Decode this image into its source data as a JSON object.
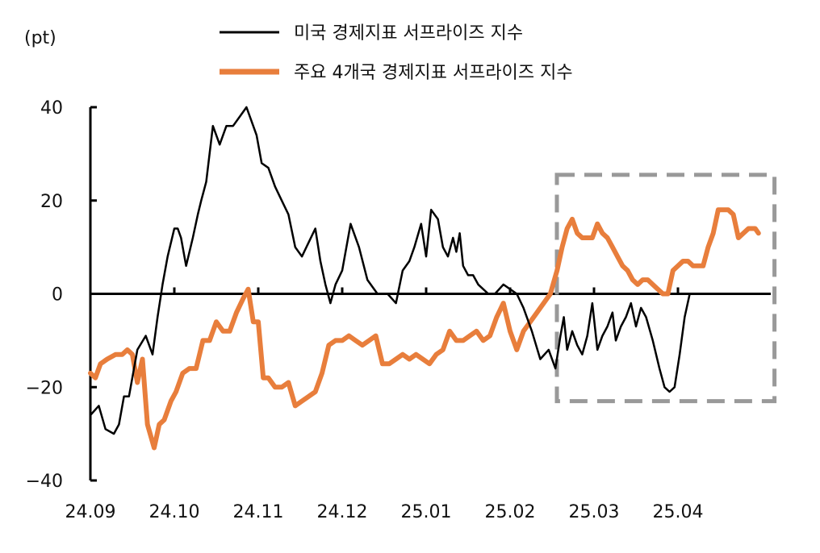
{
  "chart_data": {
    "type": "line",
    "unit_label": "(pt)",
    "ylim": [
      -40,
      40
    ],
    "yticks": [
      40,
      20,
      0,
      -20,
      -40
    ],
    "ytick_labels": [
      "40",
      "20",
      "0",
      "−20",
      "−40"
    ],
    "xlim": [
      0,
      8
    ],
    "xticks": [
      0,
      1,
      2,
      3,
      4,
      5,
      6,
      7
    ],
    "xtick_labels": [
      "24.09",
      "24.10",
      "24.11",
      "24.12",
      "25.01",
      "25.02",
      "25.03",
      "25.04"
    ],
    "legend_position": "top-center",
    "highlight_box": {
      "x_range": [
        5.5,
        8.15
      ],
      "y_range": [
        -23,
        25.5
      ],
      "style": "dashed",
      "color": "#999999"
    },
    "series": [
      {
        "name": "미국 경제지표 서프라이즈 지수",
        "color": "#000000",
        "x": [
          0,
          0.1,
          0.18,
          0.28,
          0.34,
          0.4,
          0.46,
          0.56,
          0.66,
          0.74,
          0.8,
          0.86,
          0.92,
          1.0,
          1.04,
          1.08,
          1.14,
          1.22,
          1.28,
          1.32,
          1.38,
          1.46,
          1.54,
          1.62,
          1.7,
          1.78,
          1.86,
          1.92,
          1.98,
          2.04,
          2.12,
          2.2,
          2.28,
          2.36,
          2.44,
          2.52,
          2.6,
          2.68,
          2.74,
          2.8,
          2.86,
          2.92,
          3.0,
          3.1,
          3.2,
          3.3,
          3.42,
          3.54,
          3.64,
          3.72,
          3.8,
          3.86,
          3.94,
          4.0,
          4.06,
          4.14,
          4.2,
          4.26,
          4.32,
          4.36,
          4.4,
          4.44,
          4.5,
          4.56,
          4.62,
          4.68,
          4.74,
          4.82,
          4.92,
          5.0,
          5.08,
          5.16,
          5.26,
          5.36,
          5.46,
          5.54,
          5.6,
          5.64,
          5.68,
          5.74,
          5.8,
          5.86,
          5.92,
          5.98,
          6.04,
          6.1,
          6.16,
          6.22,
          6.26,
          6.32,
          6.38,
          6.44,
          6.5,
          6.56,
          6.62,
          6.7,
          6.78,
          6.84,
          6.9,
          6.96,
          7.02,
          7.08,
          7.14,
          7.2,
          7.26,
          7.34,
          7.42,
          7.5,
          7.56,
          7.64,
          7.72,
          7.8,
          7.86,
          7.92,
          7.96
        ],
        "y": [
          -26,
          -24,
          -29,
          -30,
          -28,
          -22,
          -22,
          -12,
          -9,
          -13,
          -5,
          2,
          8,
          14,
          14,
          12,
          6,
          12,
          17,
          20,
          24,
          36,
          32,
          36,
          36,
          38,
          40,
          37,
          34,
          28,
          27,
          23,
          20,
          17,
          10,
          8,
          11,
          14,
          7,
          2,
          -2,
          2,
          5,
          15,
          10,
          3,
          0,
          0,
          -2,
          5,
          7,
          10,
          15,
          8,
          18,
          16,
          10,
          8,
          12,
          9,
          13,
          6,
          4,
          4,
          2,
          1,
          0,
          0,
          2,
          1,
          0,
          -3,
          -8,
          -14,
          -12,
          -16,
          -9,
          -5,
          -12,
          -8,
          -11,
          -13,
          -9,
          -2,
          -12,
          -9,
          -7,
          -4,
          -10,
          -7,
          -5,
          -2,
          -7,
          -3,
          -5,
          -10,
          -16,
          -20,
          -21,
          -20,
          -13,
          -5,
          0,
          0,
          0,
          0,
          0,
          0,
          0,
          0,
          0,
          0,
          0,
          0,
          0
        ]
      },
      {
        "name": "주요 4개국 경제지표 서프라이즈 지수",
        "color": "#E87E3C",
        "x": [
          0,
          0.06,
          0.12,
          0.2,
          0.3,
          0.38,
          0.44,
          0.5,
          0.56,
          0.62,
          0.68,
          0.76,
          0.82,
          0.88,
          0.96,
          1.02,
          1.1,
          1.18,
          1.26,
          1.34,
          1.42,
          1.5,
          1.58,
          1.66,
          1.74,
          1.82,
          1.88,
          1.94,
          2.0,
          2.06,
          2.12,
          2.2,
          2.28,
          2.36,
          2.44,
          2.52,
          2.6,
          2.68,
          2.76,
          2.84,
          2.92,
          3.0,
          3.08,
          3.16,
          3.24,
          3.32,
          3.4,
          3.48,
          3.56,
          3.64,
          3.72,
          3.8,
          3.88,
          3.96,
          4.04,
          4.12,
          4.2,
          4.28,
          4.36,
          4.44,
          4.52,
          4.6,
          4.68,
          4.76,
          4.84,
          4.92,
          5.0,
          5.08,
          5.16,
          5.24,
          5.32,
          5.4,
          5.48,
          5.56,
          5.62,
          5.68,
          5.74,
          5.8,
          5.86,
          5.92,
          5.98,
          6.04,
          6.1,
          6.16,
          6.22,
          6.28,
          6.34,
          6.4,
          6.46,
          6.52,
          6.58,
          6.64,
          6.7,
          6.76,
          6.82,
          6.88,
          6.94,
          7.0,
          7.06,
          7.12,
          7.18,
          7.24,
          7.3,
          7.36,
          7.42,
          7.48,
          7.54,
          7.6,
          7.66,
          7.72,
          7.78,
          7.84,
          7.88,
          7.92,
          7.96
        ],
        "y": [
          -17,
          -18,
          -15,
          -14,
          -13,
          -13,
          -12,
          -13,
          -19,
          -14,
          -28,
          -33,
          -28,
          -27,
          -23,
          -21,
          -17,
          -16,
          -16,
          -10,
          -10,
          -6,
          -8,
          -8,
          -4,
          -1,
          1,
          -6,
          -6,
          -18,
          -18,
          -20,
          -20,
          -19,
          -24,
          -23,
          -22,
          -21,
          -17,
          -11,
          -10,
          -10,
          -9,
          -10,
          -11,
          -10,
          -9,
          -15,
          -15,
          -14,
          -13,
          -14,
          -13,
          -14,
          -15,
          -13,
          -12,
          -8,
          -10,
          -10,
          -9,
          -8,
          -10,
          -9,
          -5,
          -2,
          -8,
          -12,
          -8,
          -6,
          -4,
          -2,
          0,
          5,
          10,
          14,
          16,
          13,
          12,
          12,
          12,
          15,
          13,
          12,
          10,
          8,
          6,
          5,
          3,
          2,
          3,
          3,
          2,
          1,
          0,
          0,
          5,
          6,
          7,
          7,
          6,
          6,
          6,
          10,
          13,
          18,
          18,
          18,
          17,
          12,
          13,
          14,
          14,
          14,
          13
        ]
      }
    ]
  }
}
